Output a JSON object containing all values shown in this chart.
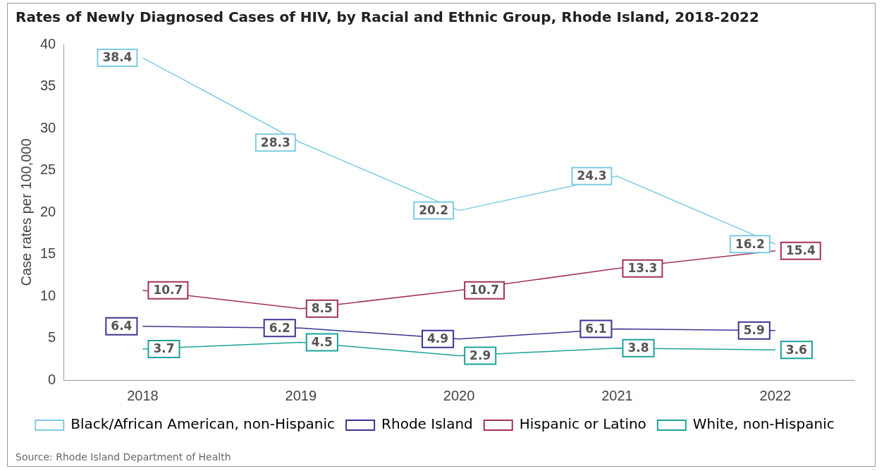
{
  "chart_data": {
    "type": "line",
    "title": "Rates of Newly Diagnosed Cases of HIV, by Racial and Ethnic Group, Rhode Island, 2018-2022",
    "ylabel": "Case rates per 100,000",
    "categories": [
      "2018",
      "2019",
      "2020",
      "2021",
      "2022"
    ],
    "series": [
      {
        "name": "Black/African American, non-Hispanic",
        "color": "#7ecbe4",
        "values": [
          38.4,
          28.3,
          20.2,
          24.3,
          16.2
        ]
      },
      {
        "name": "Rhode Island",
        "color": "#3b3592",
        "values": [
          6.4,
          6.2,
          4.9,
          6.1,
          5.9
        ]
      },
      {
        "name": "Hispanic or Latino",
        "color": "#a3305f",
        "values": [
          10.7,
          8.5,
          10.7,
          13.3,
          15.4
        ]
      },
      {
        "name": "White, non-Hispanic",
        "color": "#1ba39a",
        "values": [
          3.7,
          4.5,
          2.9,
          3.8,
          3.6
        ]
      }
    ],
    "ylim": [
      0,
      40
    ],
    "yticks": [
      0,
      5,
      10,
      15,
      20,
      25,
      30,
      35,
      40
    ],
    "grid": false,
    "legend": "bottom",
    "marker": "none",
    "line_style": "solid",
    "data_labels": true,
    "annotations": [
      "Source: Rhode Island Department of Health"
    ]
  }
}
